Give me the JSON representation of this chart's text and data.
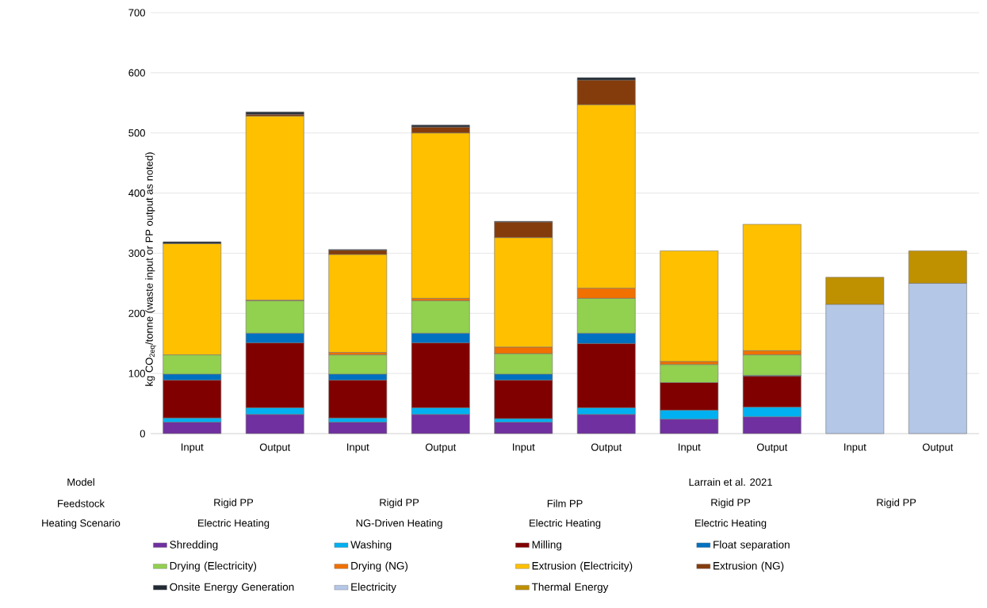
{
  "chart_data": {
    "type": "bar",
    "stacked": true,
    "ylabel": "kg CO$_{2eq}$/tonne  (waste input or PP output as noted)",
    "categories": [
      "Input",
      "Output",
      "Input",
      "Output",
      "Input",
      "Output",
      "Input",
      "Output",
      "Input",
      "Output"
    ],
    "ylim": [
      0,
      700
    ],
    "yticks": [
      0,
      100,
      200,
      300,
      400,
      500,
      600,
      700
    ],
    "grid": "y",
    "legend": "bottom",
    "annotations": [
      "Model",
      "Feedstock",
      "Heating Scenario",
      "Rigid PP",
      "Electric Heating",
      "Rigid PP",
      "NG-Driven Heating",
      "Film PP",
      "Electric Heating",
      "Larrain et al. 2021",
      "Rigid PP",
      "Electric Heating",
      "Rigid PP"
    ],
    "series": [
      {
        "name": "Shredding",
        "color": "#7030a0",
        "values": [
          19,
          32,
          19,
          32,
          19,
          32,
          24,
          28,
          null,
          null
        ]
      },
      {
        "name": "Washing",
        "color": "#00b0f0",
        "values": [
          7,
          11,
          7,
          11,
          6,
          11,
          15,
          16,
          null,
          null
        ]
      },
      {
        "name": "Milling",
        "color": "#800000",
        "values": [
          63,
          108,
          63,
          108,
          64,
          107,
          46,
          52,
          null,
          null
        ]
      },
      {
        "name": "Float separation",
        "color": "#0070c0",
        "values": [
          10,
          16,
          10,
          16,
          10,
          17,
          null,
          1,
          null,
          null
        ]
      },
      {
        "name": "Drying (Electricity)",
        "color": "#92d050",
        "values": [
          32,
          54,
          32,
          54,
          34,
          58,
          30,
          34,
          null,
          null
        ]
      },
      {
        "name": "Drying (NG)",
        "color": "#f07000",
        "values": [
          null,
          1,
          4,
          4,
          11,
          17,
          5,
          7,
          null,
          null
        ]
      },
      {
        "name": "Extrusion (Electricity)",
        "color": "#ffc000",
        "values": [
          185,
          306,
          163,
          275,
          182,
          305,
          184,
          210,
          null,
          null
        ]
      },
      {
        "name": "Extrusion (NG)",
        "color": "#843c0c",
        "values": [
          null,
          3,
          7,
          10,
          26,
          41,
          null,
          null,
          null,
          null
        ]
      },
      {
        "name": "Onsite Energy Generation",
        "color": "#222a35",
        "values": [
          3,
          4,
          1,
          3,
          1,
          4,
          null,
          null,
          null,
          null
        ]
      },
      {
        "name": "Electricity",
        "color": "#b4c7e7",
        "values": [
          null,
          null,
          null,
          null,
          null,
          null,
          null,
          null,
          215,
          250
        ]
      },
      {
        "name": "Thermal Energy",
        "color": "#bf9000",
        "values": [
          null,
          null,
          null,
          null,
          null,
          null,
          null,
          null,
          45,
          54
        ]
      }
    ]
  }
}
